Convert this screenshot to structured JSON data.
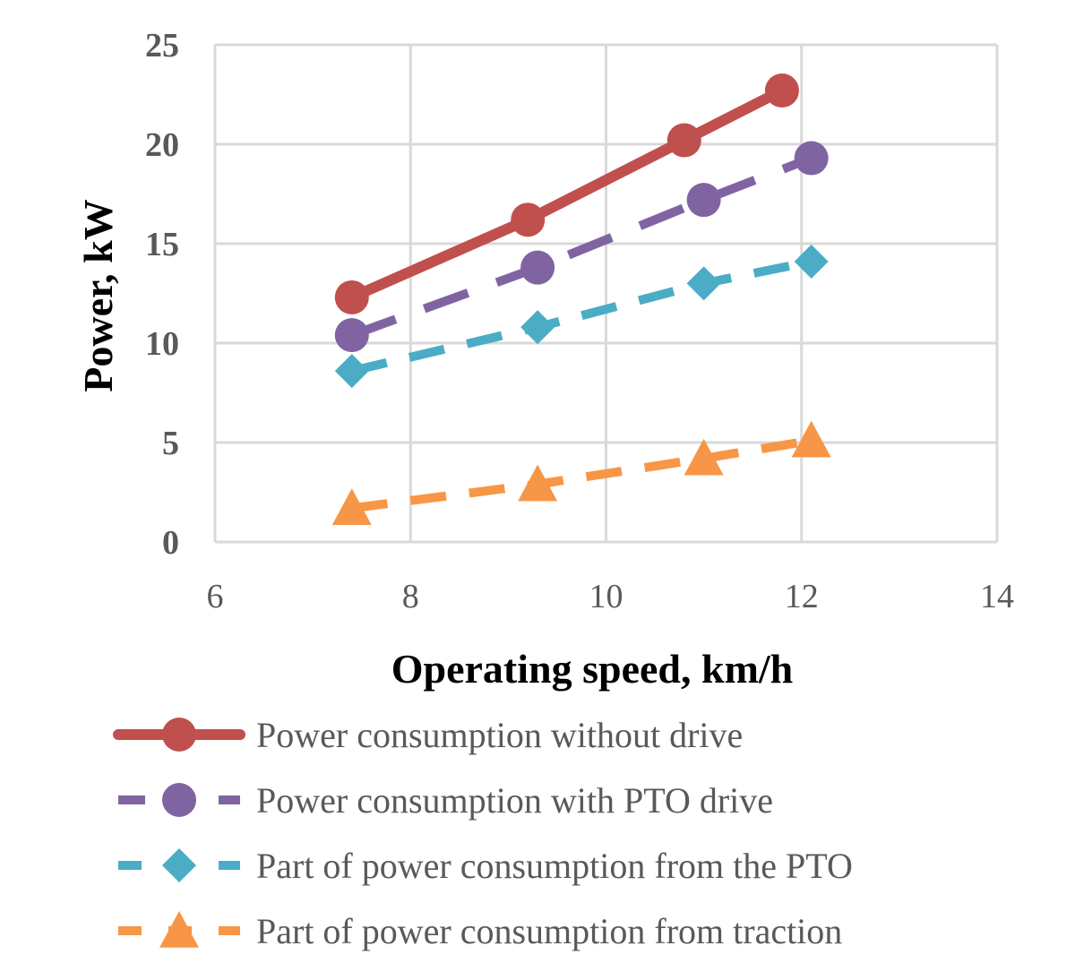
{
  "chart_data": {
    "type": "line",
    "title": "",
    "xlabel": "Operating speed, km/h",
    "ylabel": "Power, kW",
    "xlim": [
      6,
      14
    ],
    "ylim": [
      0,
      25
    ],
    "xticks": [
      6,
      8,
      10,
      12,
      14
    ],
    "yticks": [
      0,
      5,
      10,
      15,
      20,
      25
    ],
    "grid": true,
    "legend_position": "bottom",
    "series": [
      {
        "name": "Power consumption without drive",
        "color": "#c0504d",
        "dash": "solid",
        "marker": "circle",
        "x": [
          7.4,
          9.2,
          10.8,
          11.8
        ],
        "y": [
          12.3,
          16.2,
          20.2,
          22.7
        ]
      },
      {
        "name": "Power consumption with PTO drive",
        "color": "#8064a2",
        "dash": "dashed",
        "marker": "circle",
        "x": [
          7.4,
          9.3,
          11.0,
          12.1
        ],
        "y": [
          10.4,
          13.8,
          17.2,
          19.3
        ]
      },
      {
        "name": "Part of power consumption from the PTO",
        "color": "#4bacc6",
        "dash": "dashed",
        "marker": "diamond",
        "x": [
          7.4,
          9.3,
          11.0,
          12.1
        ],
        "y": [
          8.6,
          10.8,
          13.0,
          14.1
        ]
      },
      {
        "name": "Part of power consumption from traction",
        "color": "#f79646",
        "dash": "dashed",
        "marker": "triangle",
        "x": [
          7.4,
          9.3,
          11.0,
          12.1
        ],
        "y": [
          1.7,
          2.9,
          4.2,
          5.1
        ]
      }
    ]
  }
}
